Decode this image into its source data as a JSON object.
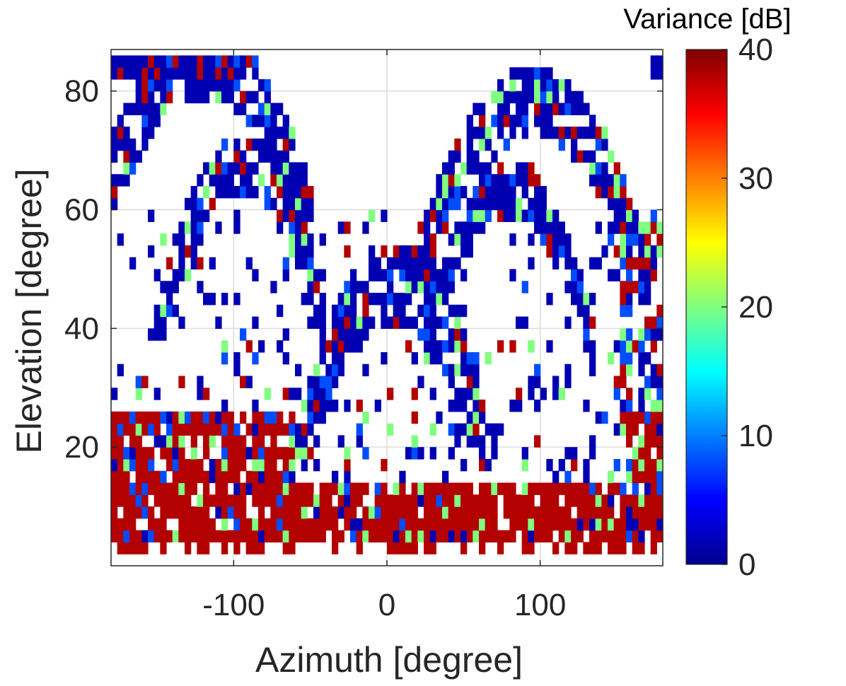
{
  "chart_data": {
    "type": "heatmap",
    "xlabel": "Azimuth [degree]",
    "ylabel": "Elevation [degree]",
    "xlim": [
      -180,
      180
    ],
    "ylim": [
      0,
      87
    ],
    "xticks": [
      -100,
      0,
      100
    ],
    "yticks": [
      20,
      40,
      60,
      80
    ],
    "grid": true,
    "colormap": "jet",
    "colorbar": {
      "title": "Variance [dB]",
      "range": [
        0,
        40
      ],
      "ticks": [
        0,
        10,
        20,
        30,
        40
      ],
      "placement": "right"
    },
    "missing_value_color": "#ffffff",
    "cell_size_degrees": [
      4,
      2
    ],
    "value_bands": [
      {
        "name": "low",
        "approx_db": 2
      },
      {
        "name": "low-mid",
        "approx_db": 8
      },
      {
        "name": "mid",
        "approx_db": 20
      },
      {
        "name": "high",
        "approx_db": 38
      }
    ],
    "regions": [
      {
        "description": "dense high-variance band near horizon",
        "azimuth": [
          -180,
          180
        ],
        "elevation": [
          4,
          14
        ],
        "value": 38
      },
      {
        "description": "lower left mixed patch",
        "azimuth": [
          -180,
          -60
        ],
        "elevation": [
          14,
          26
        ],
        "value": 38
      },
      {
        "description": "upper left arc (outer)",
        "azimuth": [
          -180,
          -60
        ],
        "elevation": [
          60,
          86
        ],
        "value": 2
      },
      {
        "description": "inner left arc",
        "azimuth": [
          -160,
          -60
        ],
        "elevation": [
          30,
          68
        ],
        "value": 2
      },
      {
        "description": "central arc",
        "azimuth": [
          -50,
          110
        ],
        "elevation": [
          48,
          62
        ],
        "value": 8
      },
      {
        "description": "upper right arc",
        "azimuth": [
          20,
          180
        ],
        "elevation": [
          64,
          80
        ],
        "value": 38
      },
      {
        "description": "right edge",
        "azimuth": [
          130,
          180
        ],
        "elevation": [
          20,
          86
        ],
        "value": 2
      }
    ]
  }
}
